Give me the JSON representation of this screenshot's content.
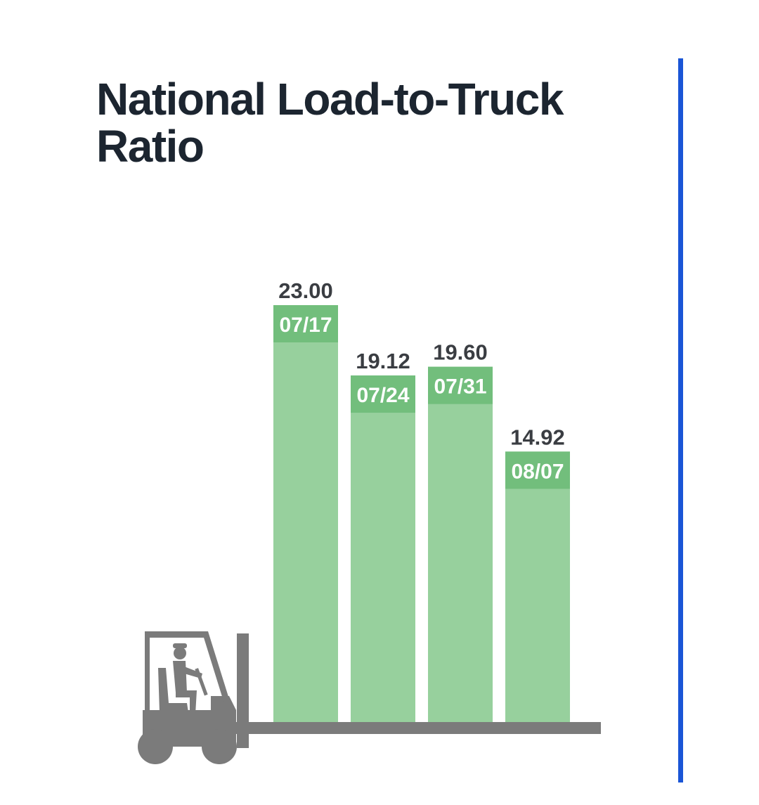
{
  "colors": {
    "title": "#1c2530",
    "accent_bar": "#1a55d6",
    "bar": "#97d09d",
    "bar_label_band": "#72be7c",
    "value_text": "#3a3d42",
    "category_text": "#ffffff",
    "forklift": "#7b7b7b"
  },
  "icons": {
    "illustration": "forklift-icon"
  },
  "chart_data": {
    "type": "bar",
    "title": [
      "National Load-to-Truck",
      "Ratio"
    ],
    "categories": [
      "07/17",
      "07/24",
      "07/31",
      "08/07"
    ],
    "values": [
      23.0,
      19.12,
      19.6,
      14.92
    ],
    "value_labels": [
      "23.00",
      "19.12",
      "19.60",
      "14.92"
    ],
    "ylim": [
      0,
      23.0
    ],
    "grid": false,
    "legend": "none",
    "xlabel": "",
    "ylabel": ""
  }
}
